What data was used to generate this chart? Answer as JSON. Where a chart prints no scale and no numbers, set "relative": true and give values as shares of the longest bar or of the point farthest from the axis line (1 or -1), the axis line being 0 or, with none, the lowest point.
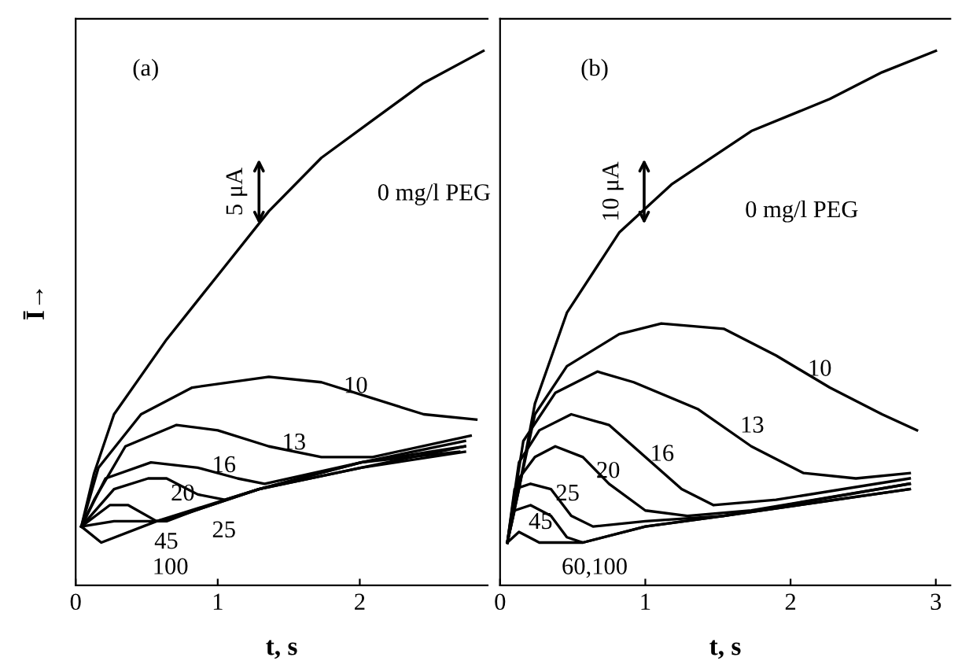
{
  "chart_data": [
    {
      "type": "line",
      "title": "(a)",
      "xlabel": "t, s",
      "ylabel": "Ī→",
      "annotations": [
        "5 μA"
      ],
      "relative": true,
      "xlim": [
        0,
        2.9
      ],
      "xticks": [
        0,
        1,
        2
      ],
      "tick_labels": "x",
      "series": [
        {
          "name": "0 mg/l PEG",
          "color": "#000000",
          "x": [
            0.04,
            0.13,
            0.27,
            0.64,
            1.0,
            1.36,
            1.73,
            2.09,
            2.45,
            2.87
          ],
          "values": [
            0.11,
            0.21,
            0.32,
            0.46,
            0.58,
            0.7,
            0.8,
            0.87,
            0.94,
            1.0
          ]
        },
        {
          "name": "10",
          "color": "#000000",
          "x": [
            0.04,
            0.16,
            0.46,
            0.82,
            1.36,
            1.73,
            2.09,
            2.45,
            2.82
          ],
          "values": [
            0.11,
            0.22,
            0.32,
            0.37,
            0.39,
            0.38,
            0.35,
            0.32,
            0.31
          ]
        },
        {
          "name": "13",
          "color": "#000000",
          "x": [
            0.04,
            0.13,
            0.35,
            0.71,
            1.0,
            1.36,
            1.73,
            2.09,
            2.78
          ],
          "values": [
            0.11,
            0.16,
            0.26,
            0.3,
            0.29,
            0.26,
            0.24,
            0.24,
            0.28
          ]
        },
        {
          "name": "16",
          "color": "#000000",
          "x": [
            0.04,
            0.21,
            0.53,
            0.86,
            1.14,
            1.33,
            2.01,
            2.74
          ],
          "values": [
            0.11,
            0.2,
            0.23,
            0.22,
            0.2,
            0.19,
            0.23,
            0.27
          ]
        },
        {
          "name": "20",
          "color": "#000000",
          "x": [
            0.04,
            0.27,
            0.51,
            0.64,
            0.86,
            1.05,
            1.29,
            2.01,
            2.74
          ],
          "values": [
            0.11,
            0.18,
            0.2,
            0.2,
            0.17,
            0.16,
            0.18,
            0.23,
            0.26
          ]
        },
        {
          "name": "25",
          "color": "#000000",
          "x": [
            0.04,
            0.24,
            0.37,
            0.57,
            0.73,
            1.29,
            2.01,
            2.7
          ],
          "values": [
            0.11,
            0.15,
            0.15,
            0.12,
            0.13,
            0.18,
            0.23,
            0.25
          ]
        },
        {
          "name": "45",
          "color": "#000000",
          "x": [
            0.04,
            0.27,
            0.64,
            0.84,
            1.29,
            2.01,
            2.74
          ],
          "values": [
            0.11,
            0.12,
            0.12,
            0.14,
            0.18,
            0.22,
            0.26
          ]
        },
        {
          "name": "100",
          "color": "#000000",
          "x": [
            0.04,
            0.18,
            0.57,
            1.29,
            2.01,
            2.74
          ],
          "values": [
            0.11,
            0.08,
            0.12,
            0.18,
            0.22,
            0.25
          ]
        }
      ]
    },
    {
      "type": "line",
      "title": "(b)",
      "xlabel": "t, s",
      "annotations": [
        "10 μA"
      ],
      "relative": true,
      "xlim": [
        0,
        3.1
      ],
      "xticks": [
        0,
        1,
        2,
        3
      ],
      "tick_labels": "x",
      "series": [
        {
          "name": "0 mg/l PEG",
          "color": "#000000",
          "x": [
            0.05,
            0.13,
            0.24,
            0.46,
            0.82,
            1.18,
            1.73,
            2.27,
            2.63,
            3.0
          ],
          "values": [
            0.08,
            0.18,
            0.34,
            0.51,
            0.66,
            0.75,
            0.85,
            0.91,
            0.96,
            1.0
          ]
        },
        {
          "name": "10",
          "color": "#000000",
          "x": [
            0.05,
            0.24,
            0.46,
            0.82,
            1.11,
            1.54,
            1.9,
            2.27,
            2.63,
            2.87
          ],
          "values": [
            0.08,
            0.32,
            0.41,
            0.47,
            0.49,
            0.48,
            0.43,
            0.37,
            0.32,
            0.29
          ]
        },
        {
          "name": "13",
          "color": "#000000",
          "x": [
            0.05,
            0.16,
            0.38,
            0.67,
            0.92,
            1.36,
            1.73,
            2.09,
            2.45,
            2.82
          ],
          "values": [
            0.08,
            0.27,
            0.36,
            0.4,
            0.38,
            0.33,
            0.26,
            0.21,
            0.2,
            0.21
          ]
        },
        {
          "name": "16",
          "color": "#000000",
          "x": [
            0.05,
            0.13,
            0.27,
            0.49,
            0.75,
            1.0,
            1.25,
            1.47,
            1.9,
            2.82
          ],
          "values": [
            0.08,
            0.23,
            0.29,
            0.32,
            0.3,
            0.24,
            0.18,
            0.15,
            0.16,
            0.2
          ]
        },
        {
          "name": "20",
          "color": "#000000",
          "x": [
            0.05,
            0.13,
            0.24,
            0.38,
            0.57,
            0.75,
            1.0,
            1.29,
            1.73,
            2.82
          ],
          "values": [
            0.08,
            0.2,
            0.24,
            0.26,
            0.24,
            0.19,
            0.14,
            0.13,
            0.14,
            0.19
          ]
        },
        {
          "name": "25",
          "color": "#000000",
          "x": [
            0.05,
            0.1,
            0.21,
            0.35,
            0.49,
            0.64,
            1.0,
            1.54,
            2.82
          ],
          "values": [
            0.08,
            0.18,
            0.19,
            0.18,
            0.13,
            0.11,
            0.12,
            0.13,
            0.19
          ]
        },
        {
          "name": "45",
          "color": "#000000",
          "x": [
            0.05,
            0.1,
            0.21,
            0.35,
            0.46,
            0.57,
            1.0,
            1.54,
            2.82
          ],
          "values": [
            0.08,
            0.14,
            0.15,
            0.13,
            0.09,
            0.08,
            0.11,
            0.13,
            0.18
          ]
        },
        {
          "name": "60,100",
          "color": "#000000",
          "x": [
            0.05,
            0.13,
            0.27,
            0.57,
            1.0,
            1.54,
            2.82
          ],
          "values": [
            0.08,
            0.1,
            0.08,
            0.08,
            0.11,
            0.13,
            0.18
          ]
        }
      ]
    }
  ]
}
